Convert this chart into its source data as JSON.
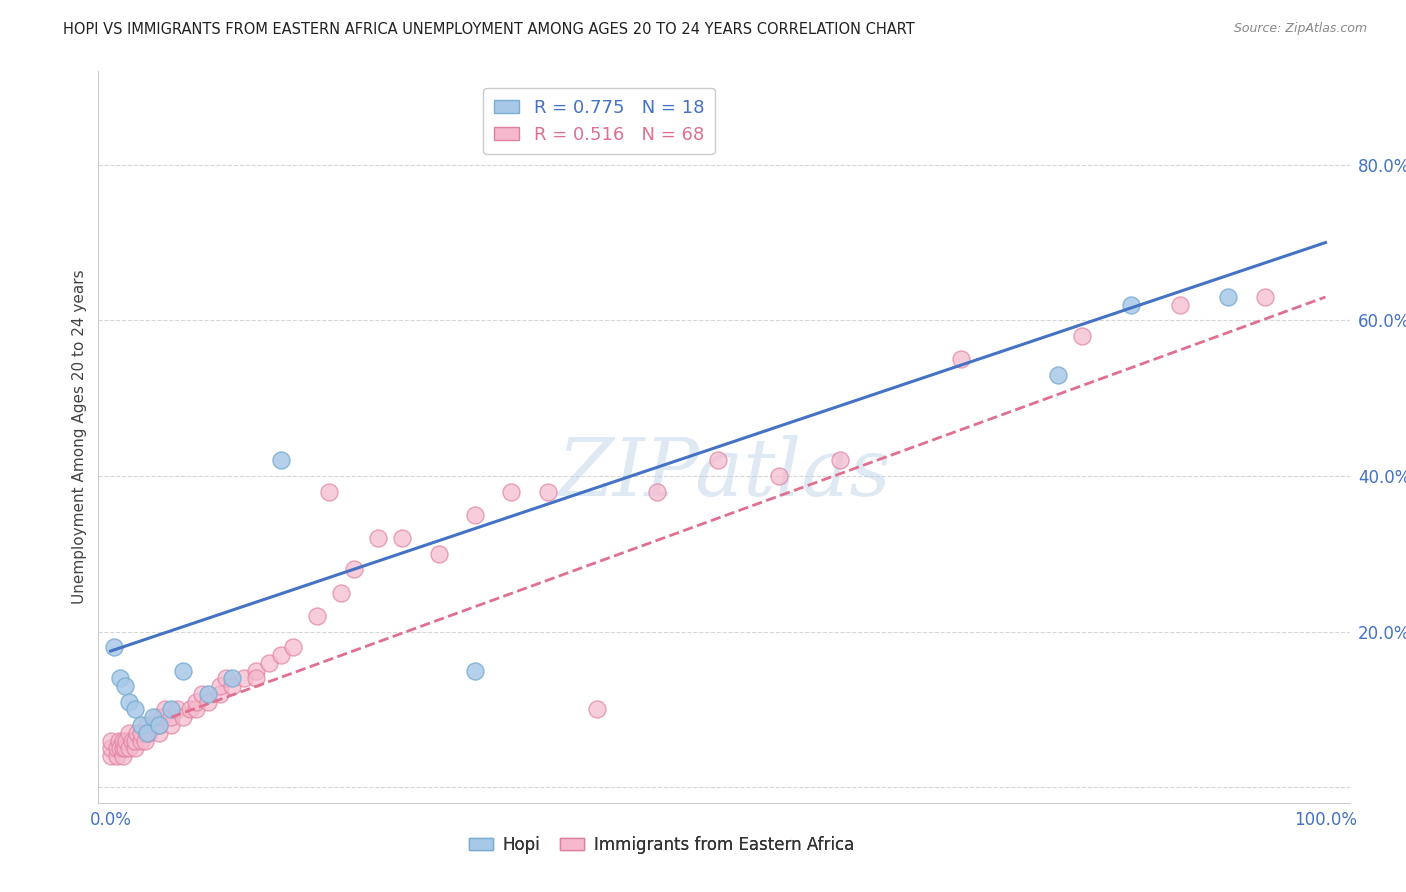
{
  "title": "HOPI VS IMMIGRANTS FROM EASTERN AFRICA UNEMPLOYMENT AMONG AGES 20 TO 24 YEARS CORRELATION CHART",
  "source": "Source: ZipAtlas.com",
  "ylabel": "Unemployment Among Ages 20 to 24 years",
  "xlim": [
    -0.01,
    1.02
  ],
  "ylim": [
    -0.02,
    0.92
  ],
  "grid_color": "#cccccc",
  "hopi_color": "#a8c8e8",
  "hopi_edge_color": "#7aaed0",
  "immigrants_color": "#f5b8cc",
  "immigrants_edge_color": "#e080a0",
  "hopi_line_color": "#4472c4",
  "immigrants_line_color": "#e07090",
  "legend_hopi_R": "0.775",
  "legend_hopi_N": "18",
  "legend_immigrants_R": "0.516",
  "legend_immigrants_N": "68",
  "hopi_x": [
    0.003,
    0.008,
    0.012,
    0.015,
    0.02,
    0.025,
    0.03,
    0.035,
    0.04,
    0.05,
    0.06,
    0.08,
    0.1,
    0.14,
    0.3,
    0.78,
    0.84,
    0.92
  ],
  "hopi_y": [
    0.18,
    0.14,
    0.13,
    0.11,
    0.1,
    0.08,
    0.07,
    0.09,
    0.08,
    0.1,
    0.15,
    0.12,
    0.14,
    0.42,
    0.15,
    0.53,
    0.62,
    0.63
  ],
  "immigrants_x": [
    0.0,
    0.0,
    0.0,
    0.005,
    0.005,
    0.007,
    0.008,
    0.01,
    0.01,
    0.01,
    0.012,
    0.013,
    0.015,
    0.015,
    0.018,
    0.02,
    0.02,
    0.022,
    0.025,
    0.025,
    0.028,
    0.03,
    0.03,
    0.032,
    0.035,
    0.038,
    0.04,
    0.04,
    0.042,
    0.045,
    0.05,
    0.05,
    0.055,
    0.06,
    0.065,
    0.07,
    0.07,
    0.075,
    0.08,
    0.09,
    0.09,
    0.095,
    0.1,
    0.11,
    0.12,
    0.12,
    0.13,
    0.14,
    0.15,
    0.17,
    0.18,
    0.19,
    0.2,
    0.22,
    0.24,
    0.27,
    0.3,
    0.33,
    0.36,
    0.4,
    0.45,
    0.5,
    0.55,
    0.6,
    0.7,
    0.8,
    0.88,
    0.95
  ],
  "immigrants_y": [
    0.04,
    0.05,
    0.06,
    0.04,
    0.05,
    0.06,
    0.05,
    0.04,
    0.05,
    0.06,
    0.05,
    0.06,
    0.05,
    0.07,
    0.06,
    0.05,
    0.06,
    0.07,
    0.06,
    0.07,
    0.06,
    0.07,
    0.08,
    0.07,
    0.08,
    0.09,
    0.07,
    0.08,
    0.09,
    0.1,
    0.08,
    0.09,
    0.1,
    0.09,
    0.1,
    0.1,
    0.11,
    0.12,
    0.11,
    0.12,
    0.13,
    0.14,
    0.13,
    0.14,
    0.15,
    0.14,
    0.16,
    0.17,
    0.18,
    0.22,
    0.38,
    0.25,
    0.28,
    0.32,
    0.32,
    0.3,
    0.35,
    0.38,
    0.38,
    0.1,
    0.38,
    0.42,
    0.4,
    0.42,
    0.55,
    0.58,
    0.62,
    0.63
  ],
  "hopi_line_x0": 0.0,
  "hopi_line_y0": 0.175,
  "hopi_line_x1": 1.0,
  "hopi_line_y1": 0.7,
  "imm_line_x0": 0.05,
  "imm_line_y0": 0.09,
  "imm_line_x1": 1.0,
  "imm_line_y1": 0.63,
  "background_color": "#ffffff"
}
